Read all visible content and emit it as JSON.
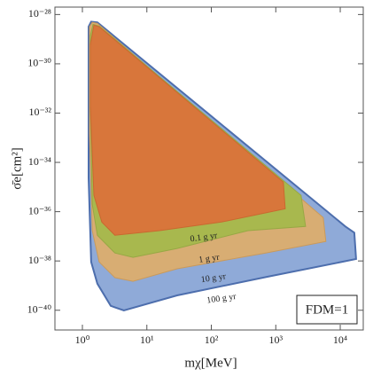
{
  "chart_data": {
    "type": "region",
    "x_label": "mχ[MeV]",
    "y_label": "σ̄e[cm²]",
    "annotation": "FDM=1",
    "log_x": true,
    "log_y": true,
    "xlim": [
      0.375,
      22750
    ],
    "ylim": [
      1.58e-41,
      2e-28
    ],
    "xticks": [
      {
        "value": 1,
        "label": "10⁰"
      },
      {
        "value": 10,
        "label": "10¹"
      },
      {
        "value": 100,
        "label": "10²"
      },
      {
        "value": 1000,
        "label": "10³"
      },
      {
        "value": 10000,
        "label": "10⁴"
      }
    ],
    "yticks": [
      {
        "value": 1e-28,
        "label": "10⁻²⁸"
      },
      {
        "value": 1e-30,
        "label": "10⁻³⁰"
      },
      {
        "value": 1e-32,
        "label": "10⁻³²"
      },
      {
        "value": 1e-34,
        "label": "10⁻³⁴"
      },
      {
        "value": 1e-36,
        "label": "10⁻³⁶"
      },
      {
        "value": 1e-38,
        "label": "10⁻³⁸"
      },
      {
        "value": 1e-40,
        "label": "10⁻⁴⁰"
      }
    ],
    "series": [
      {
        "name": "100 g yr",
        "color": "#8faad8",
        "edge": "#4d6ead",
        "x": [
          1.25,
          1.37,
          1.71,
          12000,
          16500,
          17600,
          697,
          29.5,
          4.4,
          2.75,
          1.71,
          1.37,
          1.25
        ],
        "values": [
          3.2e-29,
          5.1e-29,
          4.8e-29,
          2.5e-37,
          1.4e-37,
          1.2e-38,
          2.2e-39,
          4e-40,
          9.8e-41,
          1.5e-40,
          1.2e-39,
          9.1e-39,
          2.4e-35
        ]
      },
      {
        "name": "10 g yr",
        "color": "#d8ad73",
        "edge": "#c99a5c",
        "x": [
          1.29,
          1.42,
          1.71,
          5450,
          5990,
          697,
          29.5,
          6.1,
          3.2,
          1.82,
          1.42,
          1.29
        ],
        "values": [
          3.2e-29,
          4.8e-29,
          4.4e-29,
          5.8e-37,
          6.2e-38,
          2.1e-38,
          4.8e-39,
          1.5e-39,
          2.1e-39,
          9.1e-39,
          1.7e-37,
          1.5e-33
        ]
      },
      {
        "name": "1 g yr",
        "color": "#a8b84e",
        "edge": "#97a844",
        "x": [
          1.33,
          1.46,
          1.82,
          2470,
          2900,
          371,
          29.5,
          6.1,
          3.2,
          1.71,
          1.42,
          1.33
        ],
        "values": [
          1.4e-29,
          4e-29,
          3.4e-29,
          4.6e-36,
          2.5e-37,
          1.7e-37,
          3.2e-38,
          1.4e-38,
          2.1e-38,
          1.1e-37,
          2e-36,
          1.8e-32
        ]
      },
      {
        "name": "0.1 g yr",
        "color": "#d8763b",
        "edge": "#c9692f",
        "x": [
          1.33,
          1.51,
          1.82,
          1312,
          1400,
          144,
          15.7,
          3.2,
          2.0,
          1.51,
          1.33
        ],
        "values": [
          6e-30,
          3.7e-29,
          3.2e-29,
          1.6e-35,
          1.3e-36,
          3.8e-37,
          1.7e-37,
          1.1e-37,
          3.8e-37,
          4.6e-36,
          1.8e-32
        ]
      }
    ]
  }
}
